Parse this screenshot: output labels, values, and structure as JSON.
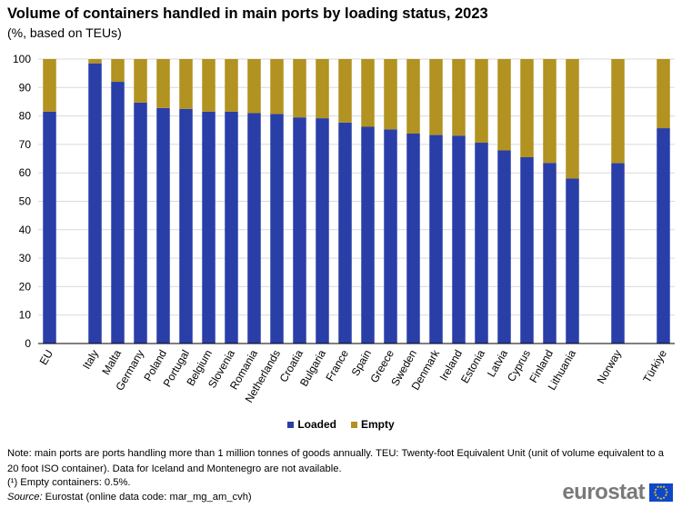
{
  "title": "Volume of containers handled in main ports by loading status, 2023",
  "subtitle": "(%, based on TEUs)",
  "chart_data": {
    "type": "bar",
    "stacked": true,
    "categories": [
      "EU",
      "Italy",
      "Malta",
      "Germany",
      "Poland",
      "Portugal",
      "Belgium",
      "Slovenia",
      "Romania",
      "Netherlands",
      "Croatia",
      "Bulgaria",
      "France",
      "Spain",
      "Greece",
      "Sweden",
      "Denmark",
      "Ireland",
      "Estonia",
      "Latvia",
      "Cyprus",
      "Finland",
      "Lithuania",
      "Norway",
      "Türkiye"
    ],
    "series": [
      {
        "name": "Loaded",
        "color": "#2a3ea8",
        "values": [
          81.5,
          98.5,
          92,
          84.7,
          82.8,
          82.5,
          81.5,
          81.5,
          81,
          80.7,
          79.5,
          79.2,
          77.7,
          76.2,
          75.3,
          73.8,
          73.3,
          73.1,
          70.6,
          67.9,
          65.5,
          63.5,
          58,
          63.4,
          75.7
        ]
      },
      {
        "name": "Empty",
        "color": "#b29220",
        "values": [
          18.5,
          1.5,
          8,
          15.3,
          17.2,
          17.5,
          18.5,
          18.5,
          19,
          19.3,
          20.5,
          20.8,
          22.3,
          23.8,
          24.7,
          26.2,
          26.7,
          26.9,
          29.4,
          32.1,
          34.5,
          36.5,
          42,
          36.6,
          24.3
        ]
      }
    ],
    "groups_after_index": [
      0,
      22,
      23
    ],
    "ylim": [
      0,
      100
    ],
    "yticks": [
      0,
      10,
      20,
      30,
      40,
      50,
      60,
      70,
      80,
      90,
      100
    ],
    "xlabel": "",
    "ylabel": "",
    "grid": true,
    "legend": "bottom-center"
  },
  "legend": {
    "loaded": "Loaded",
    "empty": "Empty"
  },
  "note": "Note: main ports are ports handling more than 1 million tonnes of goods annually.  TEU: Twenty-foot  Equivalent Unit (unit of volume  equivalent  to a 20 foot ISO container). Data for Iceland and Montenegro are not available.",
  "footnote": "(¹) Empty containers: 0.5%.",
  "source_label": "Source:",
  "source_text": " Eurostat (online data code: mar_mg_am_cvh)",
  "logo_text": "eurostat",
  "colors": {
    "loaded": "#2a3ea8",
    "empty": "#b29220",
    "grid": "#d9d9d9"
  }
}
